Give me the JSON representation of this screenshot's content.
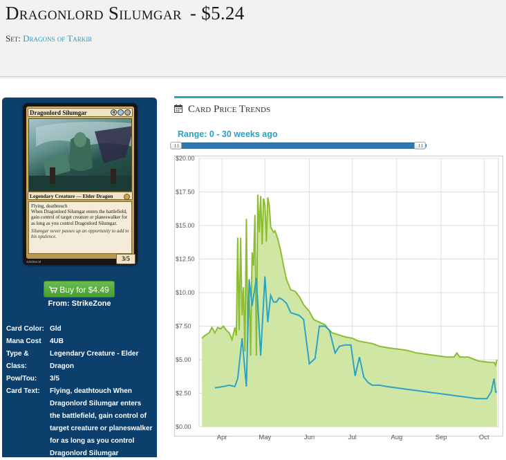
{
  "header": {
    "card_name": "Dragonlord Silumgar",
    "price": "- $5.24",
    "set_label": "Set:",
    "set_name": "Dragons of Tarkir"
  },
  "card_image": {
    "name": "Dragonlord Silumgar",
    "mana_symbols": [
      "4",
      "U",
      "B"
    ],
    "type_line": "Legendary Creature — Elder Dragon",
    "rules_text": [
      "Flying, deathtouch",
      "When Dragonlord Silumgar enters the battlefield, gain control of target creature or planeswalker for as long as you control Dragonlord Silumgar."
    ],
    "flavor_text": "Silumgar never passes up an opportunity to add to his opulence.",
    "power_toughness": "3/5",
    "collector_number": "220/264 M"
  },
  "buy": {
    "label": "Buy for $4.49",
    "from": "From: StrikeZone",
    "icon": "shopping-cart-icon"
  },
  "details": [
    {
      "label": "Card Color:",
      "value": "Gld"
    },
    {
      "label": "Mana Cost",
      "value": "4UB"
    },
    {
      "label": "Type & Class:",
      "value": "Legendary Creature - Elder Dragon"
    },
    {
      "label": "Pow/Tou:",
      "value": "3/5"
    },
    {
      "label": "Card Text:",
      "value": "Flying, deathtouch When Dragonlord Silumgar enters the battlefield, gain control of target creature or planeswalker for as long as you control Dragonlord Silumgar"
    }
  ],
  "trends": {
    "title": "Card Price Trends",
    "icon": "calendar-icon",
    "range_label": "Range: 0 - 30 weeks ago",
    "range_start_weeks": 30,
    "range_end_weeks": 0
  },
  "colors": {
    "accent": "#2a9fc4",
    "buy_green": "#5cb645",
    "panel_blue": "#0d3f6d",
    "series_green": "#8cbd32",
    "series_fill": "#cde5a0",
    "series_blue": "#2aa3c4"
  },
  "chart_data": {
    "type": "area",
    "x_tick_labels": [
      "Apr",
      "May",
      "Jun",
      "Jul",
      "Aug",
      "Sep",
      "Oct"
    ],
    "y_tick_labels": [
      "$0.00",
      "$2.50",
      "$5.00",
      "$7.50",
      "$10.00",
      "$12.50",
      "$15.00",
      "$17.50",
      "$20.00"
    ],
    "ylim": [
      0,
      20
    ],
    "grid": true,
    "legend": "none",
    "series": [
      {
        "type": "area",
        "x": [
          "03-18",
          "03-20",
          "03-23",
          "03-25",
          "03-27",
          "03-29",
          "03-31",
          "04-02",
          "04-04",
          "04-06",
          "04-08",
          "04-10",
          "04-11",
          "04-12",
          "04-13",
          "04-14",
          "04-15",
          "04-16",
          "04-17",
          "04-18",
          "04-19",
          "04-20",
          "04-21",
          "04-22",
          "04-23",
          "04-24",
          "04-25",
          "04-26",
          "04-27",
          "04-28",
          "04-29",
          "04-30",
          "05-01",
          "05-02",
          "05-03",
          "05-04",
          "05-05",
          "05-06",
          "05-07",
          "05-08",
          "05-09",
          "05-10",
          "05-12",
          "05-14",
          "05-16",
          "05-19",
          "05-22",
          "05-25",
          "05-28",
          "06-01",
          "06-04",
          "06-08",
          "06-12",
          "06-14",
          "06-17",
          "06-20",
          "06-23",
          "06-26",
          "07-01",
          "07-05",
          "07-10",
          "07-15",
          "07-20",
          "07-25",
          "08-01",
          "08-08",
          "08-15",
          "08-22",
          "08-29",
          "09-05",
          "09-10",
          "09-12",
          "09-14",
          "09-20",
          "09-27",
          "10-05",
          "10-08",
          "10-09",
          "10-10"
        ],
        "values": [
          6.6,
          6.8,
          7.0,
          7.4,
          7.0,
          7.4,
          7.3,
          7.5,
          7.2,
          7.0,
          6.5,
          7.4,
          6.8,
          14.1,
          7.2,
          14.1,
          8.3,
          10.4,
          5.6,
          15.5,
          6.9,
          10.3,
          5.3,
          13.0,
          12.0,
          15.8,
          5.3,
          17.3,
          14.5,
          17.2,
          13.6,
          17.0,
          16.5,
          13.8,
          17.1,
          16.5,
          14.9,
          14.7,
          14.5,
          14.6,
          14.3,
          14.0,
          13.1,
          12.0,
          11.0,
          10.2,
          10.1,
          9.7,
          9.1,
          8.6,
          8.0,
          7.8,
          7.6,
          7.3,
          7.0,
          6.9,
          6.8,
          6.7,
          6.6,
          6.4,
          6.3,
          6.2,
          6.0,
          5.9,
          5.8,
          5.7,
          5.5,
          5.4,
          5.3,
          5.2,
          5.2,
          5.5,
          5.2,
          5.2,
          4.9,
          4.8,
          4.8,
          4.6,
          5.0
        ]
      },
      {
        "type": "line",
        "x": [
          "03-27",
          "04-02",
          "04-06",
          "04-10",
          "04-12",
          "04-15",
          "04-18",
          "04-20",
          "04-22",
          "04-25",
          "04-28",
          "05-01",
          "05-03",
          "05-05",
          "05-07",
          "05-09",
          "05-11",
          "05-13",
          "05-16",
          "05-19",
          "05-22",
          "05-25",
          "05-28",
          "06-01",
          "06-05",
          "06-08",
          "06-12",
          "06-15",
          "06-19",
          "06-22",
          "06-26",
          "06-30",
          "07-03",
          "07-06",
          "07-09",
          "07-12",
          "07-15",
          "07-20",
          "07-25",
          "08-01",
          "08-08",
          "08-15",
          "08-22",
          "08-29",
          "09-05",
          "09-12",
          "09-19",
          "09-26",
          "10-03",
          "10-06",
          "10-08",
          "10-09",
          "10-10"
        ],
        "values": [
          2.9,
          3.0,
          3.1,
          3.0,
          3.6,
          6.6,
          3.0,
          11.0,
          9.0,
          11.1,
          5.3,
          11.2,
          7.8,
          9.8,
          9.3,
          9.3,
          9.6,
          9.5,
          9.2,
          8.5,
          8.4,
          8.3,
          8.0,
          4.7,
          5.1,
          7.5,
          7.5,
          7.2,
          5.5,
          6.0,
          6.1,
          6.1,
          3.8,
          5.2,
          3.7,
          3.3,
          3.1,
          3.1,
          3.0,
          2.9,
          2.8,
          2.7,
          2.6,
          2.5,
          2.4,
          2.3,
          2.2,
          2.1,
          2.1,
          2.6,
          3.6,
          2.6,
          2.6
        ]
      }
    ]
  }
}
